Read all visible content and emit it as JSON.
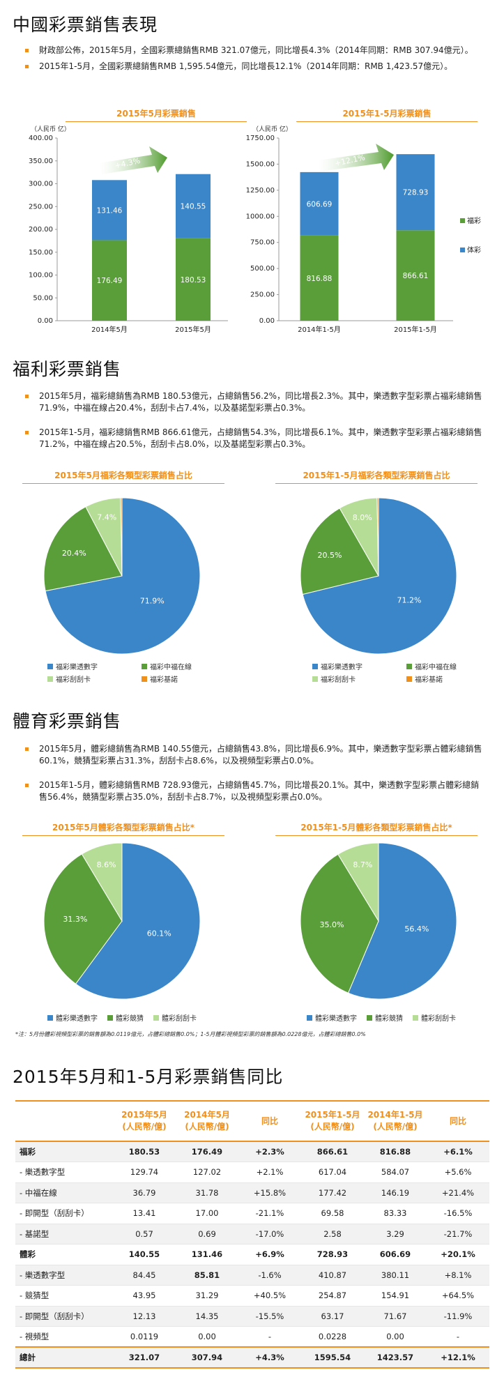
{
  "sections": {
    "overview": {
      "title": "中國彩票銷售表現",
      "bullets": [
        "財政部公佈，2015年5月，全國彩票總銷售RMB 321.07億元，同比增長4.3%（2014年同期：RMB 307.94億元）。",
        "2015年1-5月，全國彩票總銷售RMB 1,595.54億元，同比增長12.1%（2014年同期：RMB 1,423.57億元）。"
      ]
    },
    "welfare": {
      "title": "福利彩票銷售",
      "bullets": [
        "2015年5月，福彩總銷售為RMB 180.53億元，占總銷售56.2%，同比增長2.3%。其中，樂透數字型彩票占福彩總銷售71.9%，中福在線占20.4%，刮刮卡占7.4%，以及基諾型彩票占0.3%。",
        "2015年1-5月，福彩總銷售RMB 866.61億元，占總銷售54.3%，同比增長6.1%。其中，樂透數字型彩票占福彩總銷售71.2%，中福在線占20.5%，刮刮卡占8.0%，以及基諾型彩票占0.3%。"
      ]
    },
    "sports": {
      "title": "體育彩票銷售",
      "bullets": [
        "2015年5月，體彩總銷售為RMB 140.55億元，占總銷售43.8%，同比增長6.9%。其中，樂透數字型彩票占體彩總銷售60.1%，競猜型彩票占31.3%，刮刮卡占8.6%，以及視頻型彩票占0.0%。",
        "2015年1-5月，體彩總銷售RMB 728.93億元，占總銷售45.7%，同比增長20.1%。其中，樂透數字型彩票占體彩總銷售56.4%，競猜型彩票占35.0%，刮刮卡占8.7%，以及視頻型彩票占0.0%。"
      ],
      "note": "*注：5月份體彩視頻型彩票的銷售額為0.0119億元，占體彩總銷售0.0%；1-5月體彩視頻型彩票的銷售額為0.0228億元，占體彩總銷售0.0%"
    },
    "comparison": {
      "title": "2015年5月和1-5月彩票銷售同比"
    }
  },
  "colors": {
    "welfare": "#5a9e3a",
    "sports": "#3b86c8",
    "scratch": "#b6dd95",
    "keno": "#f0901c",
    "accent": "#f0901c",
    "arrow": "#4e9a2c"
  },
  "chart_data": [
    {
      "type": "bar",
      "stacked": true,
      "title": "2015年5月彩票銷售",
      "unit_label": "（人民币 亿）",
      "categories": [
        "2014年5月",
        "2015年5月"
      ],
      "series": [
        {
          "name": "福彩",
          "values": [
            176.49,
            180.53
          ]
        },
        {
          "name": "体彩",
          "values": [
            131.46,
            140.55
          ]
        }
      ],
      "ylim": [
        0,
        400
      ],
      "yticks": [
        "0.00",
        "50.00",
        "100.00",
        "150.00",
        "200.00",
        "250.00",
        "300.00",
        "350.00",
        "400.00"
      ],
      "growth_label": "+4.3%"
    },
    {
      "type": "bar",
      "stacked": true,
      "title": "2015年1-5月彩票銷售",
      "unit_label": "（人民币 亿）",
      "categories": [
        "2014年1-5月",
        "2015年1-5月"
      ],
      "series": [
        {
          "name": "福彩",
          "values": [
            816.88,
            866.61
          ]
        },
        {
          "name": "体彩",
          "values": [
            606.69,
            728.93
          ]
        }
      ],
      "ylim": [
        0,
        1750
      ],
      "yticks": [
        "0.00",
        "250.00",
        "500.00",
        "750.00",
        "1000.00",
        "1250.00",
        "1500.00",
        "1750.00"
      ],
      "growth_label": "+12.1%",
      "legend": [
        "福彩",
        "体彩"
      ]
    },
    {
      "type": "pie",
      "title": "2015年5月福彩各類型彩票銷售占比",
      "labels": [
        "福彩樂透數字",
        "福彩中福在線",
        "福彩刮刮卡",
        "福彩基諾"
      ],
      "values": [
        71.9,
        20.4,
        7.4,
        0.3
      ],
      "value_labels": [
        "71.9%",
        "20.4%",
        "7.4%",
        "0.3%"
      ]
    },
    {
      "type": "pie",
      "title": "2015年1-5月福彩各類型彩票銷售占比",
      "labels": [
        "福彩樂透數字",
        "福彩中福在線",
        "福彩刮刮卡",
        "福彩基諾"
      ],
      "values": [
        71.2,
        20.5,
        8.0,
        0.3
      ],
      "value_labels": [
        "71.2%",
        "20.5%",
        "8.0%",
        "0.3%"
      ]
    },
    {
      "type": "pie",
      "title": "2015年5月體彩各類型彩票銷售占比*",
      "labels": [
        "體彩樂透數字",
        "體彩競猜",
        "體彩刮刮卡"
      ],
      "values": [
        60.1,
        31.3,
        8.6
      ],
      "value_labels": [
        "60.1%",
        "31.3%",
        "8.6%"
      ]
    },
    {
      "type": "pie",
      "title": "2015年1-5月體彩各類型彩票銷售占比*",
      "labels": [
        "體彩樂透數字",
        "體彩競猜",
        "體彩刮刮卡"
      ],
      "values": [
        56.4,
        35.0,
        8.7
      ],
      "value_labels": [
        "56.4%",
        "35.0%",
        "8.7%"
      ]
    },
    {
      "type": "table",
      "headers": [
        "",
        "2015年5月\n(人民幣/億)",
        "2014年5月\n(人民幣/億)",
        "同比",
        "2015年1-5月\n(人民幣/億)",
        "2014年1-5月\n(人民幣/億)",
        "同比"
      ],
      "rows": [
        [
          "福彩",
          "180.53",
          "176.49",
          "+2.3%",
          "866.61",
          "816.88",
          "+6.1%"
        ],
        [
          "- 樂透數字型",
          "129.74",
          "127.02",
          "+2.1%",
          "617.04",
          "584.07",
          "+5.6%"
        ],
        [
          "- 中福在線",
          "36.79",
          "31.78",
          "+15.8%",
          "177.42",
          "146.19",
          "+21.4%"
        ],
        [
          "- 即開型（刮刮卡）",
          "13.41",
          "17.00",
          "-21.1%",
          "69.58",
          "83.33",
          "-16.5%"
        ],
        [
          "- 基諾型",
          "0.57",
          "0.69",
          "-17.0%",
          "2.58",
          "3.29",
          "-21.7%"
        ],
        [
          "體彩",
          "140.55",
          "131.46",
          "+6.9%",
          "728.93",
          "606.69",
          "+20.1%"
        ],
        [
          "- 樂透數字型",
          "84.45",
          "85.81",
          "-1.6%",
          "410.87",
          "380.11",
          "+8.1%"
        ],
        [
          "- 競猜型",
          "43.95",
          "31.29",
          "+40.5%",
          "254.87",
          "154.91",
          "+64.5%"
        ],
        [
          "- 即開型（刮刮卡）",
          "12.13",
          "14.35",
          "-15.5%",
          "63.17",
          "71.67",
          "-11.9%"
        ],
        [
          "- 視頻型",
          "0.0119",
          "0.00",
          "-",
          "0.0228",
          "0.00",
          "-"
        ],
        [
          "總計",
          "321.07",
          "307.94",
          "+4.3%",
          "1595.54",
          "1423.57",
          "+12.1%"
        ]
      ]
    }
  ]
}
